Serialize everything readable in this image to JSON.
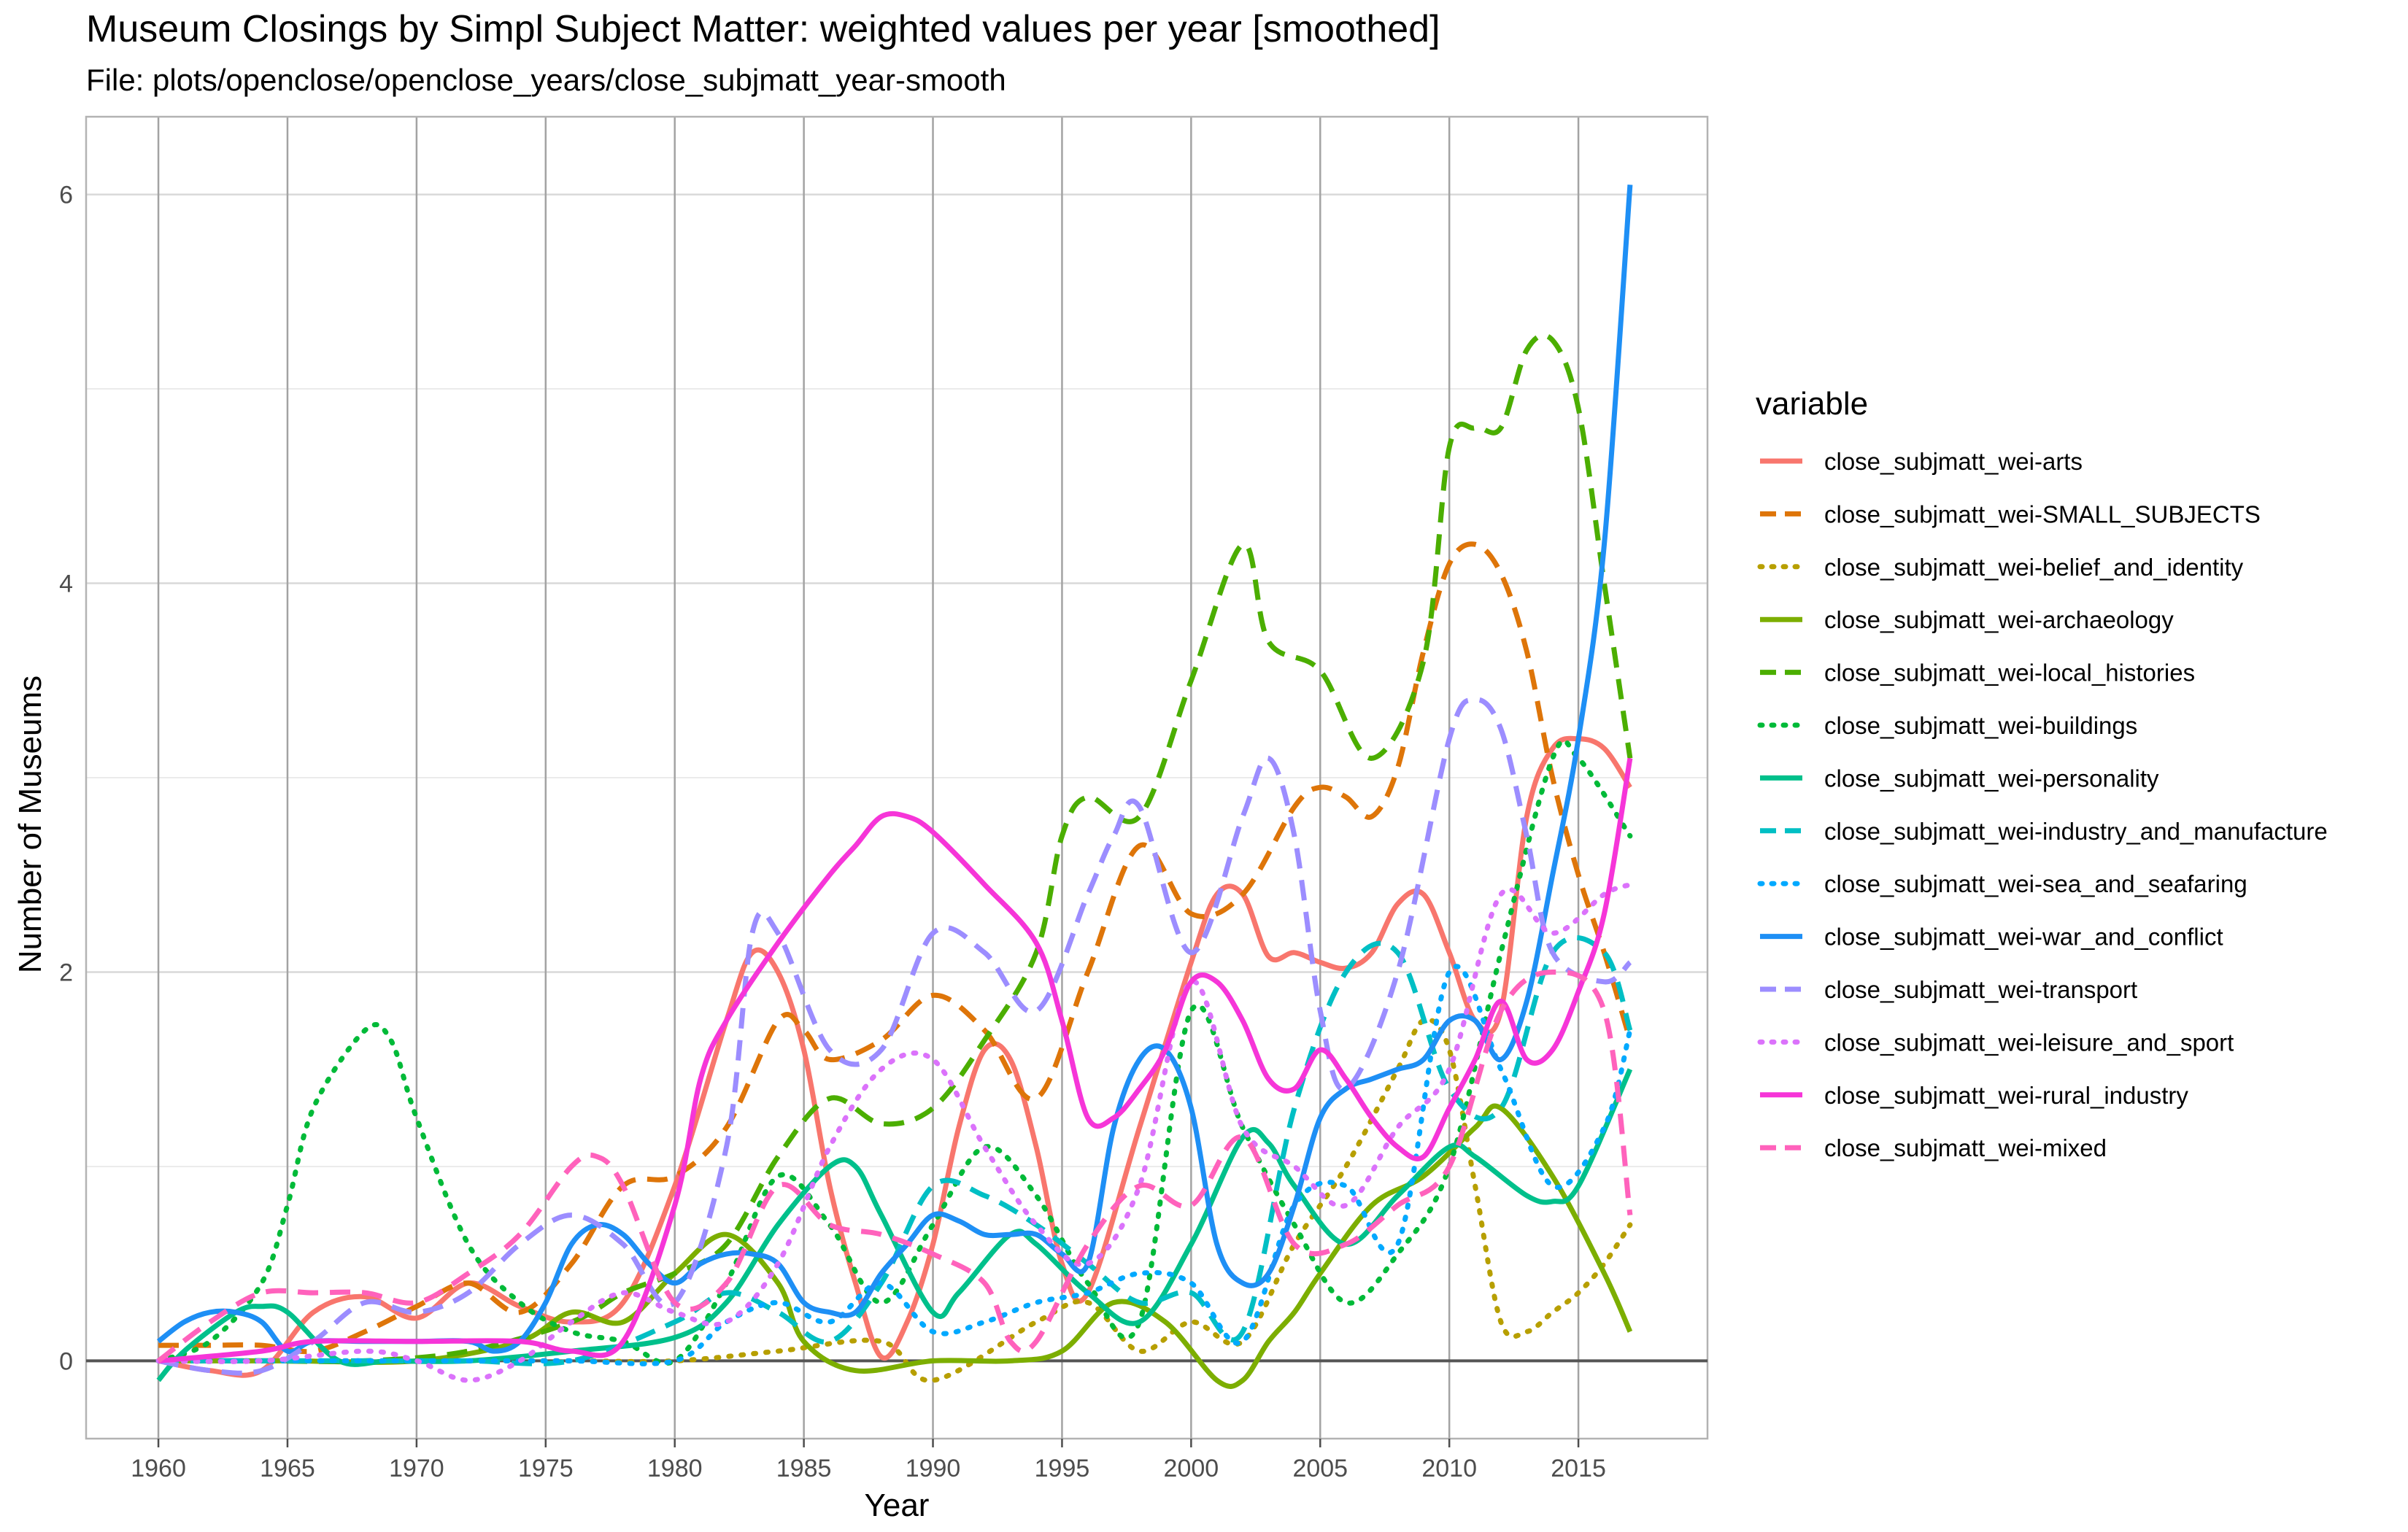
{
  "chart_data": {
    "type": "line",
    "title": "Museum Closings by Simpl Subject Matter: weighted values per year [smoothed]",
    "subtitle": "File: plots/openclose/openclose_years/close_subjmatt_year-smooth",
    "xlabel": "Year",
    "ylabel": "Number of Museums",
    "xlim": [
      1957.2,
      1920.0
    ],
    "ylim": [
      -0.4,
      6.4
    ],
    "x_ticks": [
      1960,
      1965,
      1970,
      1975,
      1980,
      1985,
      1990,
      1995,
      2000,
      2005,
      2010,
      2015
    ],
    "y_ticks": [
      0,
      2,
      4,
      6
    ],
    "grid": true,
    "legend_title": "variable",
    "legend_position": "right",
    "series": [
      {
        "name": "close_subjmatt_wei-arts",
        "color": "#F8766D",
        "dash": "solid",
        "x": [
          1960,
          1962,
          1964,
          1966,
          1968,
          1970,
          1972,
          1974,
          1976,
          1978,
          1980,
          1982,
          1983,
          1984,
          1985,
          1986,
          1987,
          1988,
          1989,
          1990,
          1991,
          1992,
          1993,
          1994,
          1995,
          1996,
          1998,
          2000,
          2001,
          2002,
          2003,
          2004,
          2005,
          2006,
          2007,
          2008,
          2009,
          2010,
          2011,
          2012,
          2013,
          2014,
          2015,
          2016,
          2017
        ],
        "y": [
          0,
          -0.05,
          -0.05,
          0.25,
          0.33,
          0.22,
          0.4,
          0.28,
          0.2,
          0.3,
          0.9,
          1.75,
          2.1,
          2.0,
          1.6,
          0.9,
          0.4,
          0.02,
          0.2,
          0.6,
          1.2,
          1.6,
          1.55,
          1.1,
          0.5,
          0.35,
          1.2,
          2.05,
          2.4,
          2.4,
          2.08,
          2.1,
          2.05,
          2.02,
          2.1,
          2.35,
          2.4,
          2.1,
          1.75,
          1.8,
          2.8,
          3.15,
          3.2,
          3.15,
          2.95
        ]
      },
      {
        "name": "close_subjmatt_wei-SMALL_SUBJECTS",
        "color": "#DE7509",
        "dash": "dashed",
        "x": [
          1960,
          1962,
          1964,
          1966,
          1968,
          1970,
          1972,
          1974,
          1976,
          1978,
          1980,
          1982,
          1984,
          1985,
          1986,
          1988,
          1990,
          1992,
          1994,
          1996,
          1998,
          2000,
          2002,
          2004,
          2005,
          2006,
          2007,
          2008,
          2009,
          2010,
          2011,
          2012,
          2013,
          2014,
          2015,
          2016,
          2017
        ],
        "y": [
          0.08,
          0.08,
          0.08,
          0.05,
          0.15,
          0.28,
          0.4,
          0.25,
          0.5,
          0.9,
          0.95,
          1.2,
          1.75,
          1.7,
          1.55,
          1.65,
          1.88,
          1.7,
          1.35,
          2.0,
          2.65,
          2.3,
          2.4,
          2.85,
          2.95,
          2.9,
          2.8,
          3.05,
          3.65,
          4.1,
          4.2,
          4.05,
          3.65,
          3.0,
          2.5,
          2.1,
          1.65
        ]
      },
      {
        "name": "close_subjmatt_wei-belief_and_identity",
        "color": "#B79F00",
        "dash": "dotted",
        "x": [
          1960,
          1964,
          1968,
          1972,
          1976,
          1980,
          1984,
          1988,
          1990,
          1994,
          1996,
          1998,
          2000,
          2002,
          2004,
          2006,
          2008,
          2009,
          2010,
          2011,
          2012,
          2013,
          2014,
          2015,
          2016,
          2017
        ],
        "y": [
          0,
          0,
          0,
          0,
          0,
          0,
          0.05,
          0.1,
          -0.1,
          0.2,
          0.3,
          0.05,
          0.2,
          0.1,
          0.6,
          1.0,
          1.5,
          1.75,
          1.6,
          0.9,
          0.2,
          0.15,
          0.25,
          0.35,
          0.5,
          0.7
        ]
      },
      {
        "name": "close_subjmatt_wei-archaeology",
        "color": "#7CAE00",
        "dash": "solid",
        "x": [
          1960,
          1965,
          1970,
          1974,
          1976,
          1978,
          1980,
          1982,
          1984,
          1985,
          1987,
          1990,
          1993,
          1995,
          1997,
          1999,
          2001,
          2002,
          2003,
          2004,
          2005,
          2007,
          2009,
          2011,
          2012,
          2014,
          2016,
          2017
        ],
        "y": [
          0,
          0,
          0,
          0.1,
          0.25,
          0.2,
          0.45,
          0.65,
          0.4,
          0.1,
          -0.05,
          0,
          0,
          0.05,
          0.3,
          0.2,
          -0.1,
          -0.1,
          0.1,
          0.25,
          0.45,
          0.8,
          0.95,
          1.2,
          1.3,
          0.95,
          0.45,
          0.15
        ]
      },
      {
        "name": "close_subjmatt_wei-local_histories",
        "color": "#4BAE00",
        "dash": "dashed",
        "x": [
          1960,
          1964,
          1968,
          1972,
          1976,
          1978,
          1980,
          1982,
          1984,
          1986,
          1988,
          1990,
          1992,
          1994,
          1995,
          1996,
          1998,
          2000,
          2002,
          2003,
          2005,
          2007,
          2009,
          2010,
          2011,
          2012,
          2013,
          2014,
          2015,
          2016,
          2017
        ],
        "y": [
          0,
          0,
          0,
          0.05,
          0.2,
          0.35,
          0.45,
          0.6,
          1.05,
          1.35,
          1.22,
          1.3,
          1.65,
          2.1,
          2.7,
          2.9,
          2.8,
          3.5,
          4.2,
          3.7,
          3.55,
          3.1,
          3.6,
          4.7,
          4.8,
          4.8,
          5.2,
          5.25,
          4.9,
          4.0,
          3.1
        ]
      },
      {
        "name": "close_subjmatt_wei-buildings",
        "color": "#00BA38",
        "dash": "dotted",
        "x": [
          1960,
          1962,
          1964,
          1965,
          1966,
          1968,
          1969,
          1970,
          1972,
          1974,
          1976,
          1978,
          1980,
          1982,
          1984,
          1986,
          1988,
          1990,
          1992,
          1994,
          1996,
          1998,
          2000,
          2002,
          2004,
          2006,
          2008,
          2010,
          2012,
          2014,
          2015,
          2017
        ],
        "y": [
          0,
          0.1,
          0.4,
          0.8,
          1.3,
          1.7,
          1.65,
          1.25,
          0.6,
          0.3,
          0.15,
          0.1,
          0,
          0.4,
          0.95,
          0.7,
          0.3,
          0.7,
          1.1,
          0.85,
          0.4,
          0.2,
          1.8,
          1.2,
          0.7,
          0.3,
          0.55,
          1.0,
          2.1,
          3.1,
          3.1,
          2.7
        ]
      },
      {
        "name": "close_subjmatt_wei-personality",
        "color": "#00C08B",
        "dash": "solid",
        "x": [
          1960,
          1961,
          1963,
          1964,
          1965,
          1967,
          1969,
          1972,
          1976,
          1980,
          1982,
          1984,
          1986,
          1987,
          1988,
          1990,
          1991,
          1993,
          1994,
          1996,
          1998,
          2000,
          2002,
          2003,
          2004,
          2006,
          2008,
          2010,
          2011,
          2013,
          2014,
          2015,
          2017
        ],
        "y": [
          -0.1,
          0.05,
          0.25,
          0.28,
          0.25,
          0,
          0,
          0,
          0.05,
          0.12,
          0.3,
          0.7,
          1.0,
          1.0,
          0.75,
          0.25,
          0.35,
          0.65,
          0.6,
          0.35,
          0.2,
          0.6,
          1.15,
          1.12,
          0.9,
          0.6,
          0.85,
          1.1,
          1.05,
          0.85,
          0.82,
          0.9,
          1.5
        ]
      },
      {
        "name": "close_subjmatt_wei-industry_and_manufacture",
        "color": "#00BFC4",
        "dash": "dashed",
        "x": [
          1960,
          1964,
          1968,
          1972,
          1976,
          1980,
          1982,
          1984,
          1986,
          1988,
          1990,
          1992,
          1994,
          1996,
          1998,
          2000,
          2002,
          2004,
          2006,
          2008,
          2010,
          2012,
          2014,
          2016,
          2017
        ],
        "y": [
          0,
          0,
          0,
          0,
          0,
          0.2,
          0.35,
          0.25,
          0.1,
          0.4,
          0.9,
          0.85,
          0.7,
          0.5,
          0.3,
          0.35,
          0.15,
          1.3,
          2.0,
          2.1,
          1.4,
          1.3,
          2.1,
          2.1,
          1.7
        ]
      },
      {
        "name": "close_subjmatt_wei-sea_and_seafaring",
        "color": "#00A9FF",
        "dash": "dotted",
        "x": [
          1960,
          1964,
          1968,
          1972,
          1976,
          1980,
          1982,
          1984,
          1986,
          1988,
          1990,
          1992,
          1994,
          1996,
          1998,
          2000,
          2002,
          2004,
          2006,
          2008,
          2010,
          2012,
          2014,
          2016,
          2017
        ],
        "y": [
          0,
          0,
          0,
          0,
          0,
          0,
          0.2,
          0.3,
          0.2,
          0.4,
          0.15,
          0.2,
          0.3,
          0.35,
          0.45,
          0.4,
          0.1,
          0.8,
          0.9,
          0.6,
          2.0,
          1.5,
          0.9,
          1.2,
          1.7
        ]
      },
      {
        "name": "close_subjmatt_wei-war_and_conflict",
        "color": "#1E8FF5",
        "dash": "solid",
        "x": [
          1960,
          1961,
          1962,
          1963,
          1964,
          1965,
          1966,
          1968,
          1970,
          1972,
          1973,
          1974,
          1975,
          1976,
          1977,
          1978,
          1979,
          1980,
          1981,
          1982,
          1983,
          1984,
          1985,
          1986,
          1987,
          1988,
          1989,
          1990,
          1991,
          1992,
          1993,
          1994,
          1995,
          1996,
          1997,
          1998,
          1999,
          2000,
          2001,
          2002,
          2003,
          2004,
          2005,
          2006,
          2007,
          2008,
          2009,
          2010,
          2011,
          2012,
          2013,
          2014,
          2015,
          2016,
          2017
        ],
        "y": [
          0.1,
          0.2,
          0.25,
          0.25,
          0.2,
          0.05,
          0.1,
          0.1,
          0.1,
          0.1,
          0.05,
          0.1,
          0.3,
          0.6,
          0.7,
          0.65,
          0.5,
          0.4,
          0.5,
          0.55,
          0.55,
          0.5,
          0.3,
          0.25,
          0.25,
          0.45,
          0.6,
          0.75,
          0.72,
          0.65,
          0.65,
          0.65,
          0.55,
          0.5,
          1.2,
          1.55,
          1.6,
          1.3,
          0.6,
          0.4,
          0.45,
          0.8,
          1.25,
          1.4,
          1.45,
          1.5,
          1.55,
          1.75,
          1.75,
          1.55,
          1.85,
          2.5,
          3.2,
          4.2,
          6.05
        ]
      },
      {
        "name": "close_subjmatt_wei-transport",
        "color": "#9C8DFF",
        "dash": "dashed",
        "x": [
          1960,
          1962,
          1964,
          1966,
          1968,
          1970,
          1972,
          1974,
          1976,
          1978,
          1980,
          1982,
          1983,
          1984,
          1986,
          1988,
          1990,
          1992,
          1994,
          1996,
          1997,
          1998,
          2000,
          2002,
          2003,
          2004,
          2005,
          2006,
          2008,
          2010,
          2011,
          2012,
          2013,
          2014,
          2016,
          2017
        ],
        "y": [
          0,
          -0.05,
          -0.05,
          0.1,
          0.3,
          0.25,
          0.35,
          0.6,
          0.75,
          0.6,
          0.3,
          1.1,
          2.2,
          2.2,
          1.6,
          1.6,
          2.2,
          2.1,
          1.8,
          2.4,
          2.7,
          2.85,
          2.1,
          2.8,
          3.1,
          2.7,
          1.8,
          1.4,
          2.0,
          3.2,
          3.4,
          3.25,
          2.7,
          2.1,
          1.95,
          2.05
        ]
      },
      {
        "name": "close_subjmatt_wei-leisure_and_sport",
        "color": "#DB72FB",
        "dash": "dotted",
        "x": [
          1960,
          1964,
          1968,
          1970,
          1972,
          1974,
          1976,
          1978,
          1980,
          1982,
          1984,
          1986,
          1988,
          1990,
          1992,
          1994,
          1996,
          1998,
          2000,
          2002,
          2004,
          2006,
          2008,
          2010,
          2012,
          2014,
          2016,
          2017
        ],
        "y": [
          0,
          0,
          0.05,
          0,
          -0.1,
          0,
          0.2,
          0.35,
          0.25,
          0.2,
          0.5,
          1.1,
          1.5,
          1.55,
          1.1,
          0.7,
          0.5,
          0.9,
          1.95,
          1.2,
          1.0,
          0.8,
          1.2,
          1.5,
          2.4,
          2.2,
          2.4,
          2.45
        ]
      },
      {
        "name": "close_subjmatt_wei-rural_industry",
        "color": "#F635D8",
        "dash": "solid",
        "x": [
          1960,
          1964,
          1966,
          1970,
          1974,
          1976,
          1978,
          1980,
          1981,
          1982,
          1984,
          1986,
          1987,
          1988,
          1989,
          1990,
          1992,
          1994,
          1995,
          1996,
          1997,
          1998,
          1999,
          2000,
          2001,
          2002,
          2003,
          2004,
          2005,
          2006,
          2007,
          2008,
          2009,
          2010,
          2011,
          2012,
          2013,
          2014,
          2015,
          2016,
          2017
        ],
        "y": [
          0,
          0.05,
          0.1,
          0.1,
          0.1,
          0.05,
          0.1,
          0.8,
          1.45,
          1.75,
          2.15,
          2.5,
          2.65,
          2.8,
          2.8,
          2.72,
          2.45,
          2.15,
          1.75,
          1.25,
          1.25,
          1.4,
          1.6,
          1.95,
          1.95,
          1.75,
          1.45,
          1.4,
          1.6,
          1.45,
          1.25,
          1.1,
          1.05,
          1.3,
          1.55,
          1.85,
          1.55,
          1.6,
          1.9,
          2.3,
          3.1
        ]
      },
      {
        "name": "close_subjmatt_wei-mixed",
        "color": "#FF62BC",
        "dash": "dashed",
        "x": [
          1960,
          1962,
          1964,
          1966,
          1968,
          1970,
          1972,
          1974,
          1976,
          1977,
          1978,
          1980,
          1982,
          1984,
          1986,
          1988,
          1990,
          1992,
          1993,
          1994,
          1996,
          1998,
          2000,
          2002,
          2004,
          2006,
          2008,
          2010,
          2012,
          2014,
          2016,
          2017
        ],
        "y": [
          0,
          0.2,
          0.35,
          0.35,
          0.35,
          0.3,
          0.45,
          0.65,
          1.0,
          1.05,
          0.9,
          0.3,
          0.4,
          0.9,
          0.7,
          0.65,
          0.55,
          0.4,
          0.1,
          0.1,
          0.6,
          0.9,
          0.8,
          1.15,
          0.6,
          0.6,
          0.8,
          1.0,
          1.8,
          2.0,
          1.8,
          0.75
        ]
      }
    ]
  }
}
